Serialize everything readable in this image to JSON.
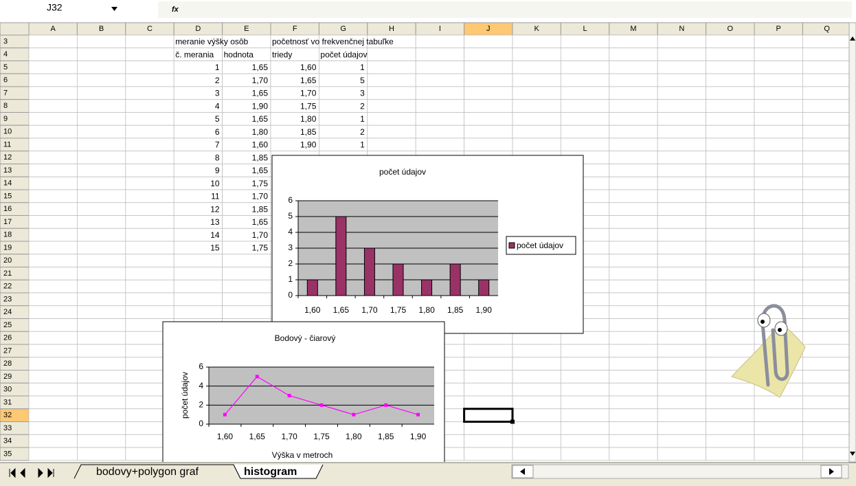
{
  "formula_bar": {
    "name_box": "J32",
    "fx": "fx"
  },
  "sheet": {
    "columns": [
      "A",
      "B",
      "C",
      "D",
      "E",
      "F",
      "G",
      "H",
      "I",
      "J",
      "K",
      "L",
      "M",
      "N",
      "O",
      "P",
      "Q"
    ],
    "rows": [
      {
        "label": "3",
        "cells": {
          "D": "meranie výšky osôb",
          "F": "početnosť vo frekvenčnej tabuľke"
        }
      },
      {
        "label": "4",
        "cells": {
          "D": "č. merania",
          "E": "hodnota",
          "F": "triedy",
          "G": "počet údajov"
        }
      },
      {
        "label": "5",
        "cells": {
          "D": "1",
          "E": "1,65",
          "F": "1,60",
          "G": "1"
        }
      },
      {
        "label": "6",
        "cells": {
          "D": "2",
          "E": "1,70",
          "F": "1,65",
          "G": "5"
        }
      },
      {
        "label": "7",
        "cells": {
          "D": "3",
          "E": "1,65",
          "F": "1,70",
          "G": "3"
        }
      },
      {
        "label": "8",
        "cells": {
          "D": "4",
          "E": "1,90",
          "F": "1,75",
          "G": "2"
        }
      },
      {
        "label": "9",
        "cells": {
          "D": "5",
          "E": "1,65",
          "F": "1,80",
          "G": "1"
        }
      },
      {
        "label": "10",
        "cells": {
          "D": "6",
          "E": "1,80",
          "F": "1,85",
          "G": "2"
        }
      },
      {
        "label": "11",
        "cells": {
          "D": "7",
          "E": "1,60",
          "F": "1,90",
          "G": "1"
        }
      },
      {
        "label": "12",
        "cells": {
          "D": "8",
          "E": "1,85"
        }
      },
      {
        "label": "13",
        "cells": {
          "D": "9",
          "E": "1,65"
        }
      },
      {
        "label": "14",
        "cells": {
          "D": "10",
          "E": "1,75"
        }
      },
      {
        "label": "15",
        "cells": {
          "D": "11",
          "E": "1,70"
        }
      },
      {
        "label": "16",
        "cells": {
          "D": "12",
          "E": "1,85"
        }
      },
      {
        "label": "17",
        "cells": {
          "D": "13",
          "E": "1,65"
        }
      },
      {
        "label": "18",
        "cells": {
          "D": "14",
          "E": "1,70"
        }
      },
      {
        "label": "19",
        "cells": {
          "D": "15",
          "E": "1,75"
        }
      },
      {
        "label": "20"
      },
      {
        "label": "21"
      },
      {
        "label": "22"
      },
      {
        "label": "23"
      },
      {
        "label": "24"
      },
      {
        "label": "25"
      },
      {
        "label": "26"
      },
      {
        "label": "27"
      },
      {
        "label": "28"
      },
      {
        "label": "29"
      },
      {
        "label": "30"
      },
      {
        "label": "31"
      },
      {
        "label": "32"
      },
      {
        "label": "33"
      },
      {
        "label": "34"
      },
      {
        "label": "35"
      }
    ]
  },
  "tabs": [
    "bodovy+polygon graf",
    "histogram"
  ],
  "chart_data": [
    {
      "type": "bar",
      "title": "počet údajov",
      "categories": [
        "1,60",
        "1,65",
        "1,70",
        "1,75",
        "1,80",
        "1,85",
        "1,90"
      ],
      "series": [
        {
          "name": "počet údajov",
          "color": "#993366",
          "values": [
            1,
            5,
            3,
            2,
            1,
            2,
            1
          ]
        }
      ],
      "ylim": [
        0,
        6
      ],
      "yticks": [
        0,
        1,
        2,
        3,
        4,
        5,
        6
      ],
      "grid": true,
      "legend": "right",
      "plot_color": "#c0c0c0"
    },
    {
      "type": "line",
      "title": "Bodový - čiarový",
      "x_label": "Výška v metroch",
      "y_label": "počet údajov",
      "categories": [
        "1,60",
        "1,65",
        "1,70",
        "1,75",
        "1,80",
        "1,85",
        "1,90"
      ],
      "color": "#ff00ff",
      "values": [
        1,
        5,
        3,
        2,
        1,
        2,
        1
      ],
      "ylim": [
        0,
        6
      ],
      "yticks": [
        0,
        2,
        4,
        6
      ],
      "grid": true,
      "plot_color": "#c0c0c0"
    }
  ]
}
